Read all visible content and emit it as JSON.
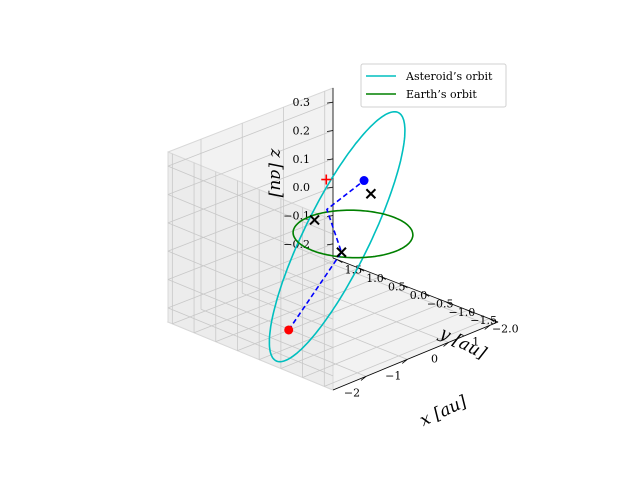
{
  "chart_data": {
    "type": "line",
    "projection": "3d",
    "title": "",
    "xlabel": "x [au]",
    "ylabel": "y [au]",
    "zlabel": "z [au]",
    "xlim": [
      -2.8,
      1.2
    ],
    "ylim": [
      -2.2,
      1.6
    ],
    "zlim": [
      -0.25,
      0.35
    ],
    "xticks": [
      -2,
      -1,
      0,
      1
    ],
    "yticks": [
      1.5,
      1.0,
      0.5,
      0.0,
      -0.5,
      -1.0,
      -1.5,
      -2.0
    ],
    "zticks": [
      0.3,
      0.2,
      0.1,
      0.0,
      -0.1,
      -0.2
    ],
    "xtick_labels": [
      "−2",
      "−1",
      "0",
      "1"
    ],
    "ytick_labels": [
      "1.5",
      "1.0",
      "0.5",
      "0.0",
      "−0.5",
      "−1.0",
      "−1.5",
      "−2.0"
    ],
    "ztick_labels": [
      "0.3",
      "0.2",
      "0.1",
      "0.0",
      "−0.1",
      "−0.2"
    ],
    "grid": true,
    "legend_position": "top-right",
    "series": [
      {
        "name": "Asteroid’s orbit",
        "color": "#00bfbf",
        "kind": "ellipse",
        "center": [
          -0.7,
          -0.3,
          0.05
        ],
        "u": [
          2.1,
          0.6,
          0.28
        ],
        "v": [
          0.0,
          0.7,
          0.0
        ]
      },
      {
        "name": "Earth’s orbit",
        "color": "#008000",
        "kind": "ellipse",
        "center": [
          0,
          0,
          0
        ],
        "u": [
          1,
          0,
          0
        ],
        "v": [
          0,
          1,
          0
        ]
      }
    ],
    "transfer": {
      "color": "#0000ff",
      "points": [
        [
          -2.4,
          -0.8,
          -0.15
        ],
        [
          -0.7,
          -0.4,
          0.0
        ],
        [
          0.0,
          0.6,
          0.05
        ],
        [
          0.9,
          0.6,
          0.1
        ]
      ]
    },
    "markers": [
      {
        "kind": "dot",
        "color": "#ff0000",
        "pos": [
          -2.4,
          -0.8,
          -0.15
        ]
      },
      {
        "kind": "dot",
        "color": "#0000ff",
        "pos": [
          0.9,
          0.6,
          0.1
        ]
      },
      {
        "kind": "plus",
        "color": "#ff0000",
        "pos": [
          0.3,
          0.9,
          0.12
        ]
      },
      {
        "kind": "x",
        "color": "#000000",
        "pos": [
          -0.7,
          -0.4,
          0.0
        ]
      },
      {
        "kind": "x",
        "color": "#000000",
        "pos": [
          -0.3,
          0.6,
          0.03
        ]
      },
      {
        "kind": "x",
        "color": "#000000",
        "pos": [
          0.75,
          0.3,
          0.08
        ]
      }
    ]
  },
  "legend": {
    "items": [
      {
        "label": "Asteroid’s orbit",
        "color": "#00bfbf"
      },
      {
        "label": "Earth’s orbit",
        "color": "#008000"
      }
    ]
  }
}
